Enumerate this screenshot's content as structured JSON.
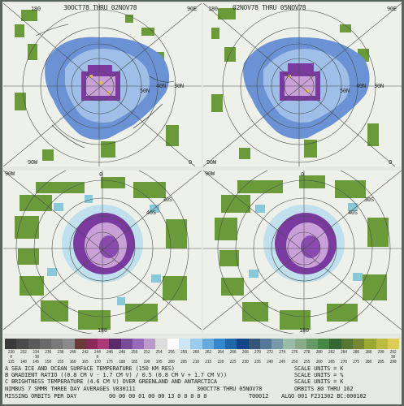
{
  "panels": {
    "top_left": {
      "date_range": "30OCT78 THRU 02NOV78",
      "left_lon": "180",
      "right_lon": "90E",
      "bottom_left": "90W",
      "bottom_right": "0",
      "lat_labels": [
        "50N",
        "40N",
        "30N"
      ]
    },
    "top_right": {
      "date_range": "02NOV78 THRU 05NOV78",
      "left_lon": "180",
      "right_lon": "90E",
      "bottom_left": "90W",
      "bottom_right": "0",
      "lat_labels": [
        "50N",
        "40N",
        "30N"
      ]
    },
    "bottom_left": {
      "top_lon": "0",
      "left_lon": "90W",
      "bottom_lon": "180",
      "lat_labels": [
        "30S",
        "40S"
      ]
    },
    "bottom_right": {
      "top_lon": "0",
      "left_lon": "90W",
      "bottom_lon": "180",
      "lat_labels": [
        "30S",
        "40S"
      ]
    }
  },
  "colorbar": {
    "colors": [
      "#3a3a3a",
      "#4a4a4a",
      "#5a5a5a",
      "#6a6a6a",
      "#7a7a7a",
      "#8a8a8a",
      "#6a3a3a",
      "#8a2a5a",
      "#aa3a7a",
      "#5a2a6a",
      "#7a4a9a",
      "#9a6aba",
      "#bb99cc",
      "#ddd",
      "#fff",
      "#cce6f5",
      "#99ccee",
      "#66aadd",
      "#3388cc",
      "#2266aa",
      "#114488",
      "#335577",
      "#557799",
      "#7799aa",
      "#99bbaa",
      "#88aa88",
      "#669966",
      "#448844",
      "#336633",
      "#557733",
      "#778833",
      "#99aa33",
      "#bbbb44",
      "#ddcc55"
    ],
    "row_a": [
      "230",
      "232",
      "234",
      "236",
      "238",
      "240",
      "242",
      "244",
      "246",
      "248",
      "250",
      "252",
      "254",
      "256",
      "258",
      "260",
      "262",
      "264",
      "266",
      "268",
      "270",
      "272",
      "274",
      "276",
      "278",
      "280",
      "282",
      "284",
      "286",
      "288",
      "290",
      "292"
    ],
    "row_a2": [
      "0",
      "",
      "-30",
      "",
      "",
      "",
      "",
      "0",
      "",
      "",
      "",
      "",
      "",
      "",
      "",
      "",
      "",
      "",
      "",
      "",
      "",
      "",
      "",
      "",
      "",
      "",
      "",
      "",
      "",
      "",
      "",
      "30"
    ],
    "row_b": [
      "135",
      "140",
      "145",
      "150",
      "155",
      "160",
      "165",
      "170",
      "175",
      "180",
      "185",
      "190",
      "195",
      "200",
      "205",
      "210",
      "215",
      "220",
      "225",
      "230",
      "235",
      "240",
      "245",
      "250",
      "255",
      "260",
      "265",
      "270",
      "275",
      "280",
      "285",
      "290"
    ]
  },
  "legend": {
    "line_a": "A  SEA ICE AND OCEAN SURFACE TEMPERATURE (150 KM RES)",
    "line_a_units": "SCALE UNITS = K",
    "line_b": "B  GRADIENT RATIO ((0.8 CM V - 1.7 CM V) / 0.5 (0.8 CM V + 1.7 CM V))",
    "line_b_units": "SCALE UNITS = %",
    "line_c": "C  BRIGHTNESS TEMPERATURE (4.6 CM V) OVER GREENLAND AND ANTARCTICA",
    "line_c_units": "SCALE UNITS = K",
    "line_d": "NIMBUS 7 SMMR THREE DAY AVERAGES  V830111",
    "line_d_mid": "30OCT78   THRU  05NOV78",
    "line_d_orbits": "ORBITS   80     THRU  162",
    "line_e": "MISSING ORBITS PER DAY",
    "line_e_vals": "00  00  00  01  00  00  13     0   0   0   0   0",
    "line_e_code": "T00012",
    "line_e_algo": "ALGO  001   F231302   BC:000182"
  }
}
